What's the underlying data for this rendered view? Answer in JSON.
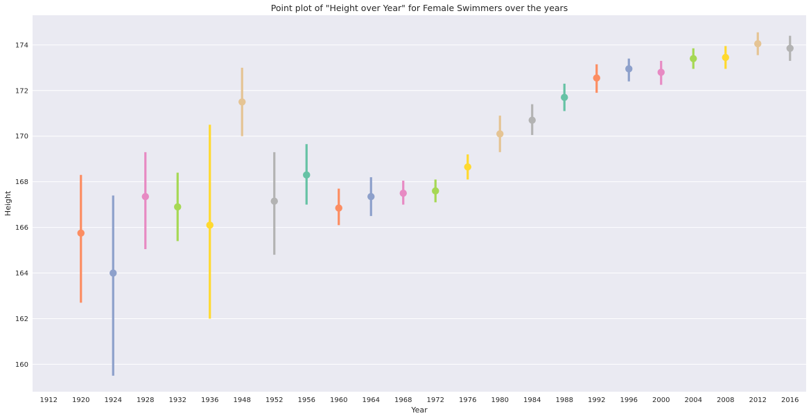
{
  "chart_data": {
    "type": "scatter",
    "title": "Point plot of \"Height over Year\" for Female Swimmers over the years",
    "xlabel": "Year",
    "ylabel": "Height",
    "categories": [
      "1912",
      "1920",
      "1924",
      "1928",
      "1932",
      "1936",
      "1948",
      "1952",
      "1956",
      "1960",
      "1964",
      "1968",
      "1972",
      "1976",
      "1980",
      "1984",
      "1988",
      "1992",
      "1996",
      "2000",
      "2004",
      "2008",
      "2012",
      "2016"
    ],
    "y_ticks": [
      160,
      162,
      164,
      166,
      168,
      170,
      172,
      174
    ],
    "ylim": [
      158.8,
      175.3
    ],
    "grid": true,
    "points": [
      {
        "x": "1912",
        "y": null,
        "low": null,
        "high": null,
        "color": null
      },
      {
        "x": "1920",
        "y": 165.75,
        "low": 162.7,
        "high": 168.3,
        "color": "#fc8d62"
      },
      {
        "x": "1924",
        "y": 164.0,
        "low": 159.5,
        "high": 167.4,
        "color": "#8da0cb"
      },
      {
        "x": "1928",
        "y": 167.35,
        "low": 165.05,
        "high": 169.3,
        "color": "#e78ac3"
      },
      {
        "x": "1932",
        "y": 166.9,
        "low": 165.4,
        "high": 168.4,
        "color": "#a6d854"
      },
      {
        "x": "1936",
        "y": 166.1,
        "low": 162.0,
        "high": 170.5,
        "color": "#ffd92f"
      },
      {
        "x": "1948",
        "y": 171.5,
        "low": 170.0,
        "high": 173.0,
        "color": "#e5c494"
      },
      {
        "x": "1952",
        "y": 167.15,
        "low": 164.8,
        "high": 169.3,
        "color": "#b3b3b3"
      },
      {
        "x": "1956",
        "y": 168.3,
        "low": 167.0,
        "high": 169.65,
        "color": "#66c2a5"
      },
      {
        "x": "1960",
        "y": 166.85,
        "low": 166.1,
        "high": 167.7,
        "color": "#fc8d62"
      },
      {
        "x": "1964",
        "y": 167.35,
        "low": 166.5,
        "high": 168.2,
        "color": "#8da0cb"
      },
      {
        "x": "1968",
        "y": 167.5,
        "low": 167.0,
        "high": 168.05,
        "color": "#e78ac3"
      },
      {
        "x": "1972",
        "y": 167.6,
        "low": 167.1,
        "high": 168.1,
        "color": "#a6d854"
      },
      {
        "x": "1976",
        "y": 168.65,
        "low": 168.1,
        "high": 169.2,
        "color": "#ffd92f"
      },
      {
        "x": "1980",
        "y": 170.1,
        "low": 169.3,
        "high": 170.9,
        "color": "#e5c494"
      },
      {
        "x": "1984",
        "y": 170.7,
        "low": 170.05,
        "high": 171.4,
        "color": "#b3b3b3"
      },
      {
        "x": "1988",
        "y": 171.7,
        "low": 171.1,
        "high": 172.3,
        "color": "#66c2a5"
      },
      {
        "x": "1992",
        "y": 172.55,
        "low": 171.9,
        "high": 173.15,
        "color": "#fc8d62"
      },
      {
        "x": "1996",
        "y": 172.95,
        "low": 172.4,
        "high": 173.4,
        "color": "#8da0cb"
      },
      {
        "x": "2000",
        "y": 172.8,
        "low": 172.25,
        "high": 173.3,
        "color": "#e78ac3"
      },
      {
        "x": "2004",
        "y": 173.4,
        "low": 172.95,
        "high": 173.85,
        "color": "#a6d854"
      },
      {
        "x": "2008",
        "y": 173.45,
        "low": 172.95,
        "high": 173.95,
        "color": "#ffd92f"
      },
      {
        "x": "2012",
        "y": 174.05,
        "low": 173.55,
        "high": 174.55,
        "color": "#e5c494"
      },
      {
        "x": "2016",
        "y": 173.85,
        "low": 173.3,
        "high": 174.4,
        "color": "#b3b3b3"
      }
    ]
  },
  "style": {
    "plot_background": "#eaeaf2",
    "grid_color": "#ffffff",
    "text_color": "#262626"
  }
}
